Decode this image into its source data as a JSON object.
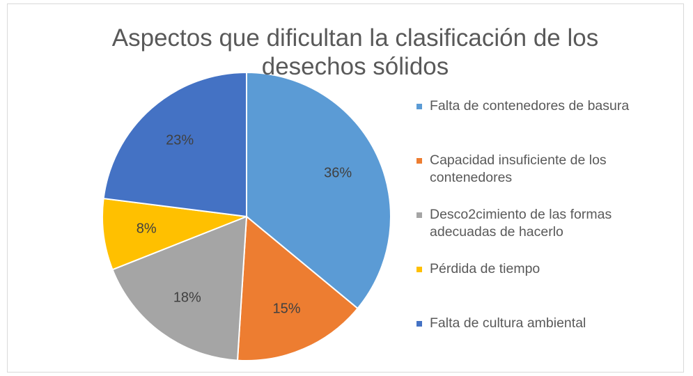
{
  "chart_data": {
    "type": "pie",
    "title": "Aspectos que dificultan la clasificación de los desechos sólidos",
    "categories": [
      "Falta de contenedores de basura",
      "Capacidad insuficiente de los contenedores",
      "Desco2cimiento de las formas adecuadas de hacerlo",
      "Pérdida de tiempo",
      "Falta de cultura ambiental"
    ],
    "values": [
      36,
      15,
      18,
      8,
      23
    ],
    "value_labels": [
      "36%",
      "15%",
      "18%",
      "8%",
      "23%"
    ],
    "colors": [
      "#5b9bd5",
      "#ed7d31",
      "#a5a5a5",
      "#ffc000",
      "#4472c4"
    ],
    "legend": "right"
  }
}
